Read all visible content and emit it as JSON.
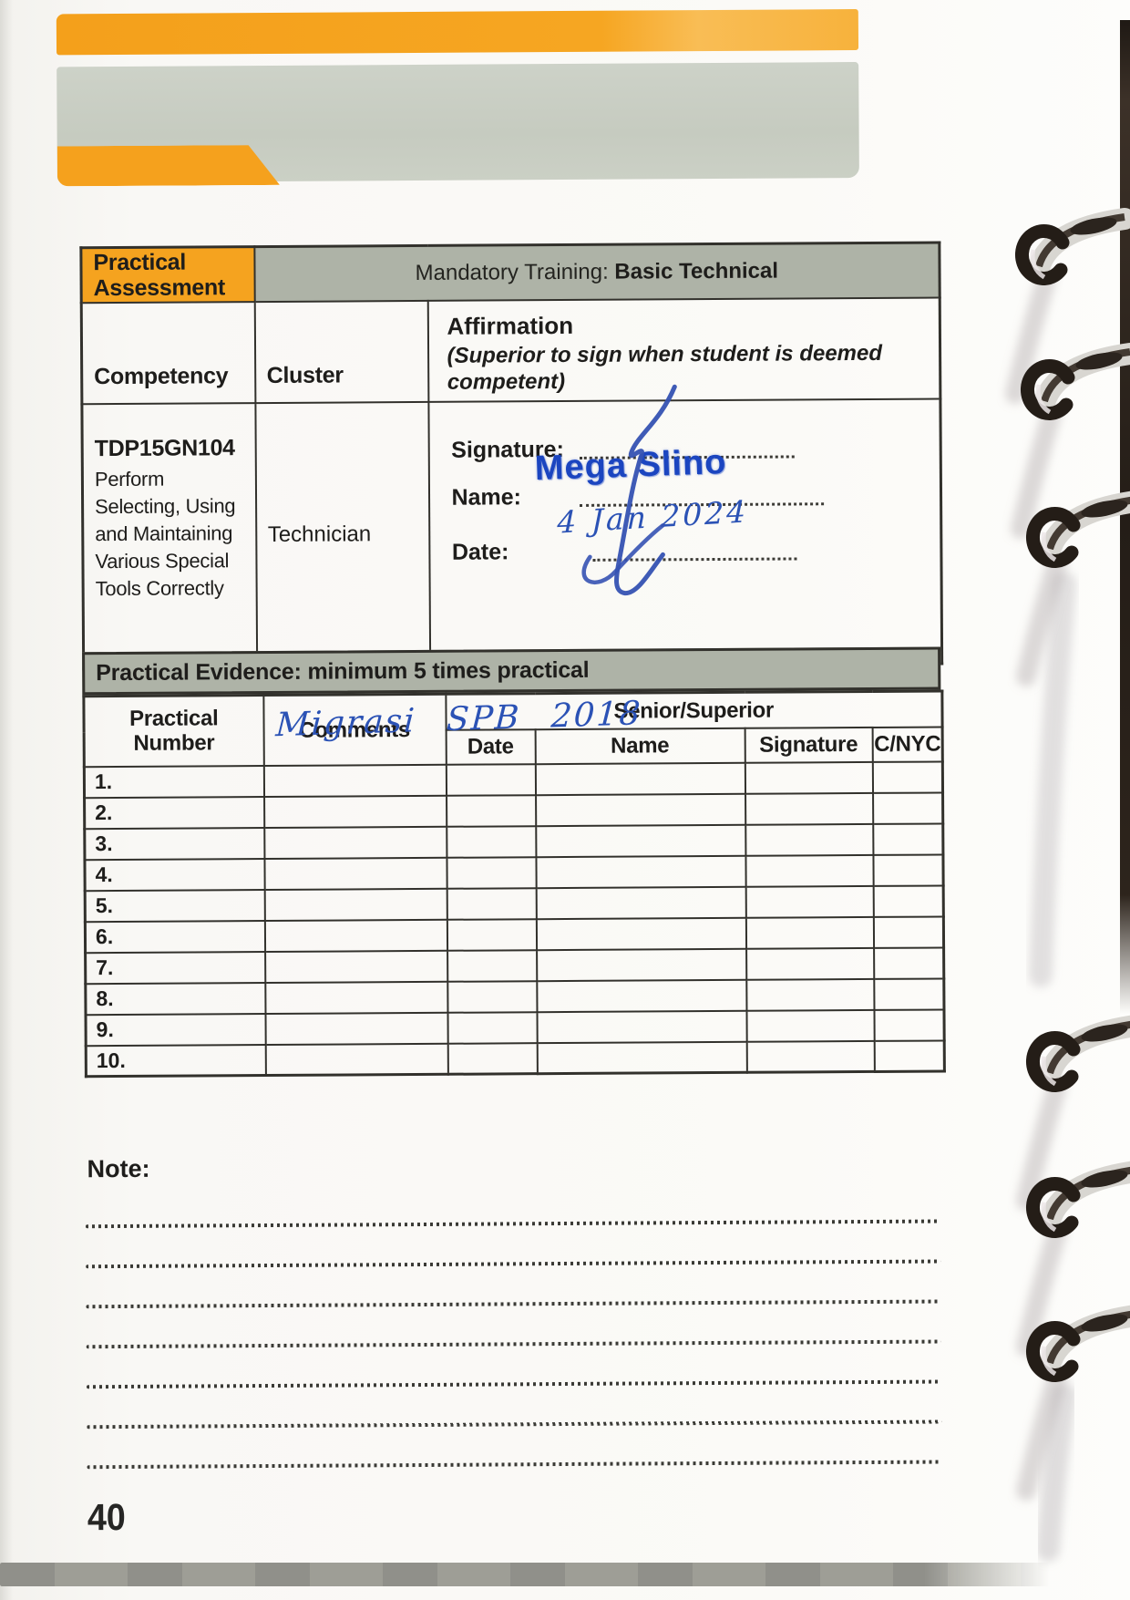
{
  "document": {
    "page_number": "40",
    "note_label": "Note:",
    "note_line_count": 7,
    "binding_rings": 6
  },
  "assessment": {
    "header_cell": "Practical Assessment",
    "training_prefix": "Mandatory Training: ",
    "training_bold": "Basic Technical",
    "competency_header": "Competency",
    "cluster_header": "Cluster",
    "affirmation_title": "Affirmation",
    "affirmation_subtitle": "(Superior to sign when student is deemed competent)",
    "competency_code": "TDP15GN104",
    "competency_description": "Perform Selecting, Using and Maintaining Various Special Tools Correctly",
    "cluster_value": "Technician",
    "signature_label": "Signature:",
    "name_label": "Name:",
    "date_label": "Date:",
    "handwritten_name": "Mega Slino",
    "handwritten_date": "4 Jan 2024"
  },
  "evidence": {
    "band_title": "Practical Evidence: minimum 5 times practical",
    "columns": {
      "practical_number": "Practical Number",
      "comments": "Comments",
      "senior_superior": "Senior/Superior",
      "date": "Date",
      "name": "Name",
      "signature": "Signature",
      "c_nyc": "C/NYC"
    },
    "rows": [
      {
        "num": "1.",
        "comment": ""
      },
      {
        "num": "2.",
        "comment": "Migrasi SPB 2018"
      },
      {
        "num": "3.",
        "comment": ""
      },
      {
        "num": "4.",
        "comment": ""
      },
      {
        "num": "5.",
        "comment": ""
      },
      {
        "num": "6.",
        "comment": ""
      },
      {
        "num": "7.",
        "comment": ""
      },
      {
        "num": "8.",
        "comment": ""
      },
      {
        "num": "9.",
        "comment": ""
      },
      {
        "num": "10.",
        "comment": ""
      }
    ]
  },
  "colors": {
    "accent_orange": "#f5a11d",
    "band_gray": "#aeb3a7",
    "decor_gray": "#c8cdc3",
    "ink_blue": "#2b4fae"
  }
}
